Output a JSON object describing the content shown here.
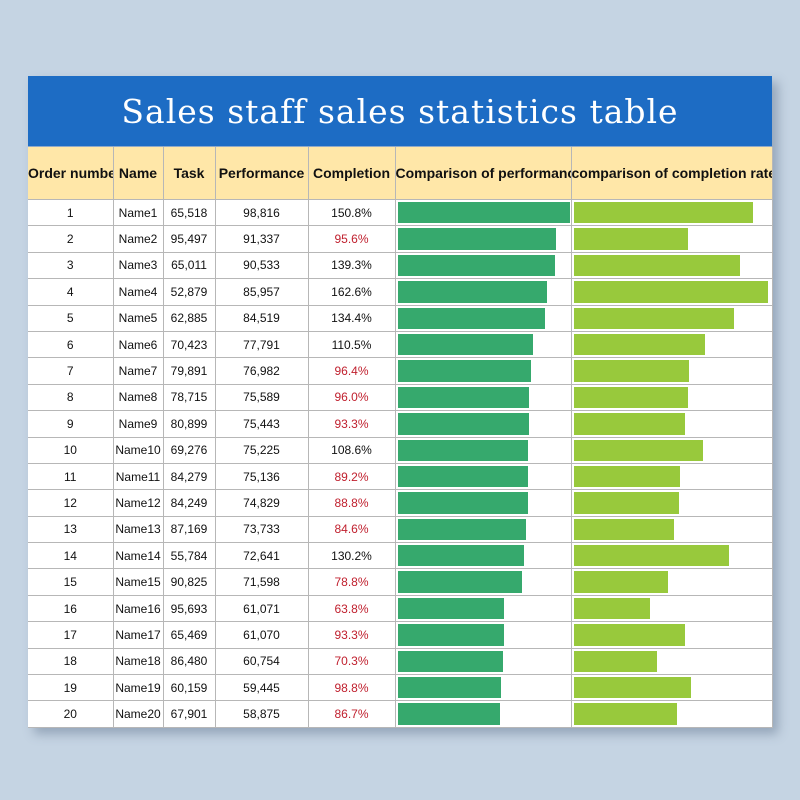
{
  "title": "Sales staff sales statistics table",
  "headers": {
    "order": "Order number",
    "name": "Name",
    "task": "Task",
    "performance": "Performance",
    "completion": "Completion",
    "cmp_performance": "Comparison of performance",
    "cmp_completion": "comparison of completion rate"
  },
  "colors": {
    "title_bg": "#1d6cc4",
    "header_bg": "#ffe7a8",
    "performance_bar": "#36a96d",
    "completion_bar": "#98c93c",
    "below_target_text": "#c0202e"
  },
  "rows": [
    {
      "order": "1",
      "name": "Name1",
      "task": "65,518",
      "performance": "98,816",
      "completion": "150.8%",
      "perf": 98816,
      "rate": 150.8
    },
    {
      "order": "2",
      "name": "Name2",
      "task": "95,497",
      "performance": "91,337",
      "completion": "95.6%",
      "perf": 91337,
      "rate": 95.6
    },
    {
      "order": "3",
      "name": "Name3",
      "task": "65,011",
      "performance": "90,533",
      "completion": "139.3%",
      "perf": 90533,
      "rate": 139.3
    },
    {
      "order": "4",
      "name": "Name4",
      "task": "52,879",
      "performance": "85,957",
      "completion": "162.6%",
      "perf": 85957,
      "rate": 162.6
    },
    {
      "order": "5",
      "name": "Name5",
      "task": "62,885",
      "performance": "84,519",
      "completion": "134.4%",
      "perf": 84519,
      "rate": 134.4
    },
    {
      "order": "6",
      "name": "Name6",
      "task": "70,423",
      "performance": "77,791",
      "completion": "110.5%",
      "perf": 77791,
      "rate": 110.5
    },
    {
      "order": "7",
      "name": "Name7",
      "task": "79,891",
      "performance": "76,982",
      "completion": "96.4%",
      "perf": 76982,
      "rate": 96.4
    },
    {
      "order": "8",
      "name": "Name8",
      "task": "78,715",
      "performance": "75,589",
      "completion": "96.0%",
      "perf": 75589,
      "rate": 96.0
    },
    {
      "order": "9",
      "name": "Name9",
      "task": "80,899",
      "performance": "75,443",
      "completion": "93.3%",
      "perf": 75443,
      "rate": 93.3
    },
    {
      "order": "10",
      "name": "Name10",
      "task": "69,276",
      "performance": "75,225",
      "completion": "108.6%",
      "perf": 75225,
      "rate": 108.6
    },
    {
      "order": "11",
      "name": "Name11",
      "task": "84,279",
      "performance": "75,136",
      "completion": "89.2%",
      "perf": 75136,
      "rate": 89.2
    },
    {
      "order": "12",
      "name": "Name12",
      "task": "84,249",
      "performance": "74,829",
      "completion": "88.8%",
      "perf": 74829,
      "rate": 88.8
    },
    {
      "order": "13",
      "name": "Name13",
      "task": "87,169",
      "performance": "73,733",
      "completion": "84.6%",
      "perf": 73733,
      "rate": 84.6
    },
    {
      "order": "14",
      "name": "Name14",
      "task": "55,784",
      "performance": "72,641",
      "completion": "130.2%",
      "perf": 72641,
      "rate": 130.2
    },
    {
      "order": "15",
      "name": "Name15",
      "task": "90,825",
      "performance": "71,598",
      "completion": "78.8%",
      "perf": 71598,
      "rate": 78.8
    },
    {
      "order": "16",
      "name": "Name16",
      "task": "95,693",
      "performance": "61,071",
      "completion": "63.8%",
      "perf": 61071,
      "rate": 63.8
    },
    {
      "order": "17",
      "name": "Name17",
      "task": "65,469",
      "performance": "61,070",
      "completion": "93.3%",
      "perf": 61070,
      "rate": 93.3
    },
    {
      "order": "18",
      "name": "Name18",
      "task": "86,480",
      "performance": "60,754",
      "completion": "70.3%",
      "perf": 60754,
      "rate": 70.3
    },
    {
      "order": "19",
      "name": "Name19",
      "task": "60,159",
      "performance": "59,445",
      "completion": "98.8%",
      "perf": 59445,
      "rate": 98.8
    },
    {
      "order": "20",
      "name": "Name20",
      "task": "67,901",
      "performance": "58,875",
      "completion": "86.7%",
      "perf": 58875,
      "rate": 86.7
    }
  ]
}
